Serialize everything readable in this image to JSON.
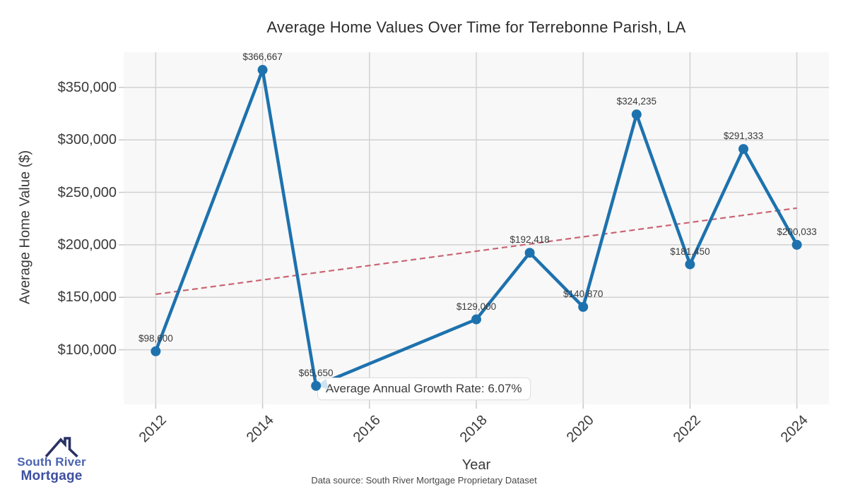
{
  "chart_data": {
    "type": "line",
    "title": "Average Home Values Over Time for Terrebonne Parish, LA",
    "xlabel": "Year",
    "ylabel": "Average Home Value ($)",
    "x": [
      2012,
      2014,
      2015,
      2018,
      2019,
      2020,
      2021,
      2022,
      2023,
      2024
    ],
    "values": [
      98600,
      366667,
      65650,
      129000,
      192418,
      140870,
      324235,
      181450,
      291333,
      200033
    ],
    "point_labels": [
      "$98,600",
      "$366,667",
      "$65,650",
      "$129,000",
      "$192,418",
      "$140,870",
      "$324,235",
      "$181,450",
      "$291,333",
      "$200,033"
    ],
    "x_ticks": [
      2012,
      2014,
      2016,
      2018,
      2020,
      2022,
      2024
    ],
    "x_tick_labels": [
      "2012",
      "2014",
      "2016",
      "2018",
      "2020",
      "2022",
      "2024"
    ],
    "y_ticks": [
      100000,
      150000,
      200000,
      250000,
      300000,
      350000
    ],
    "y_tick_labels": [
      "$100,000",
      "$150,000",
      "$200,000",
      "$250,000",
      "$300,000",
      "$350,000"
    ],
    "xlim": [
      2011.4,
      2024.6
    ],
    "ylim": [
      48000,
      383500
    ],
    "grid": true,
    "legend_position": "none",
    "trend_line": {
      "x": [
        2012,
        2024
      ],
      "values": [
        152900,
        235000
      ],
      "style": "dashed"
    },
    "annotation": "Average Annual Growth Rate: 6.07%",
    "colors": {
      "line": "#1d72ae",
      "marker": "#1d72ae",
      "trend": "#ca6473",
      "grid": "#d2d2d2",
      "tick": "#c4c4c4",
      "plot_bg": "#f8f8f8",
      "wedge": "#cfe2f0",
      "text": "#3a3a3a",
      "title": "#2d2d2d"
    }
  },
  "logo": {
    "line1": "South River",
    "line2": "Mortgage",
    "color1": "#4a63b2",
    "color2": "#3d4fa1",
    "roof_color": "#2a3163"
  },
  "footer": {
    "text": "Data source: South River Mortgage Proprietary Dataset"
  }
}
